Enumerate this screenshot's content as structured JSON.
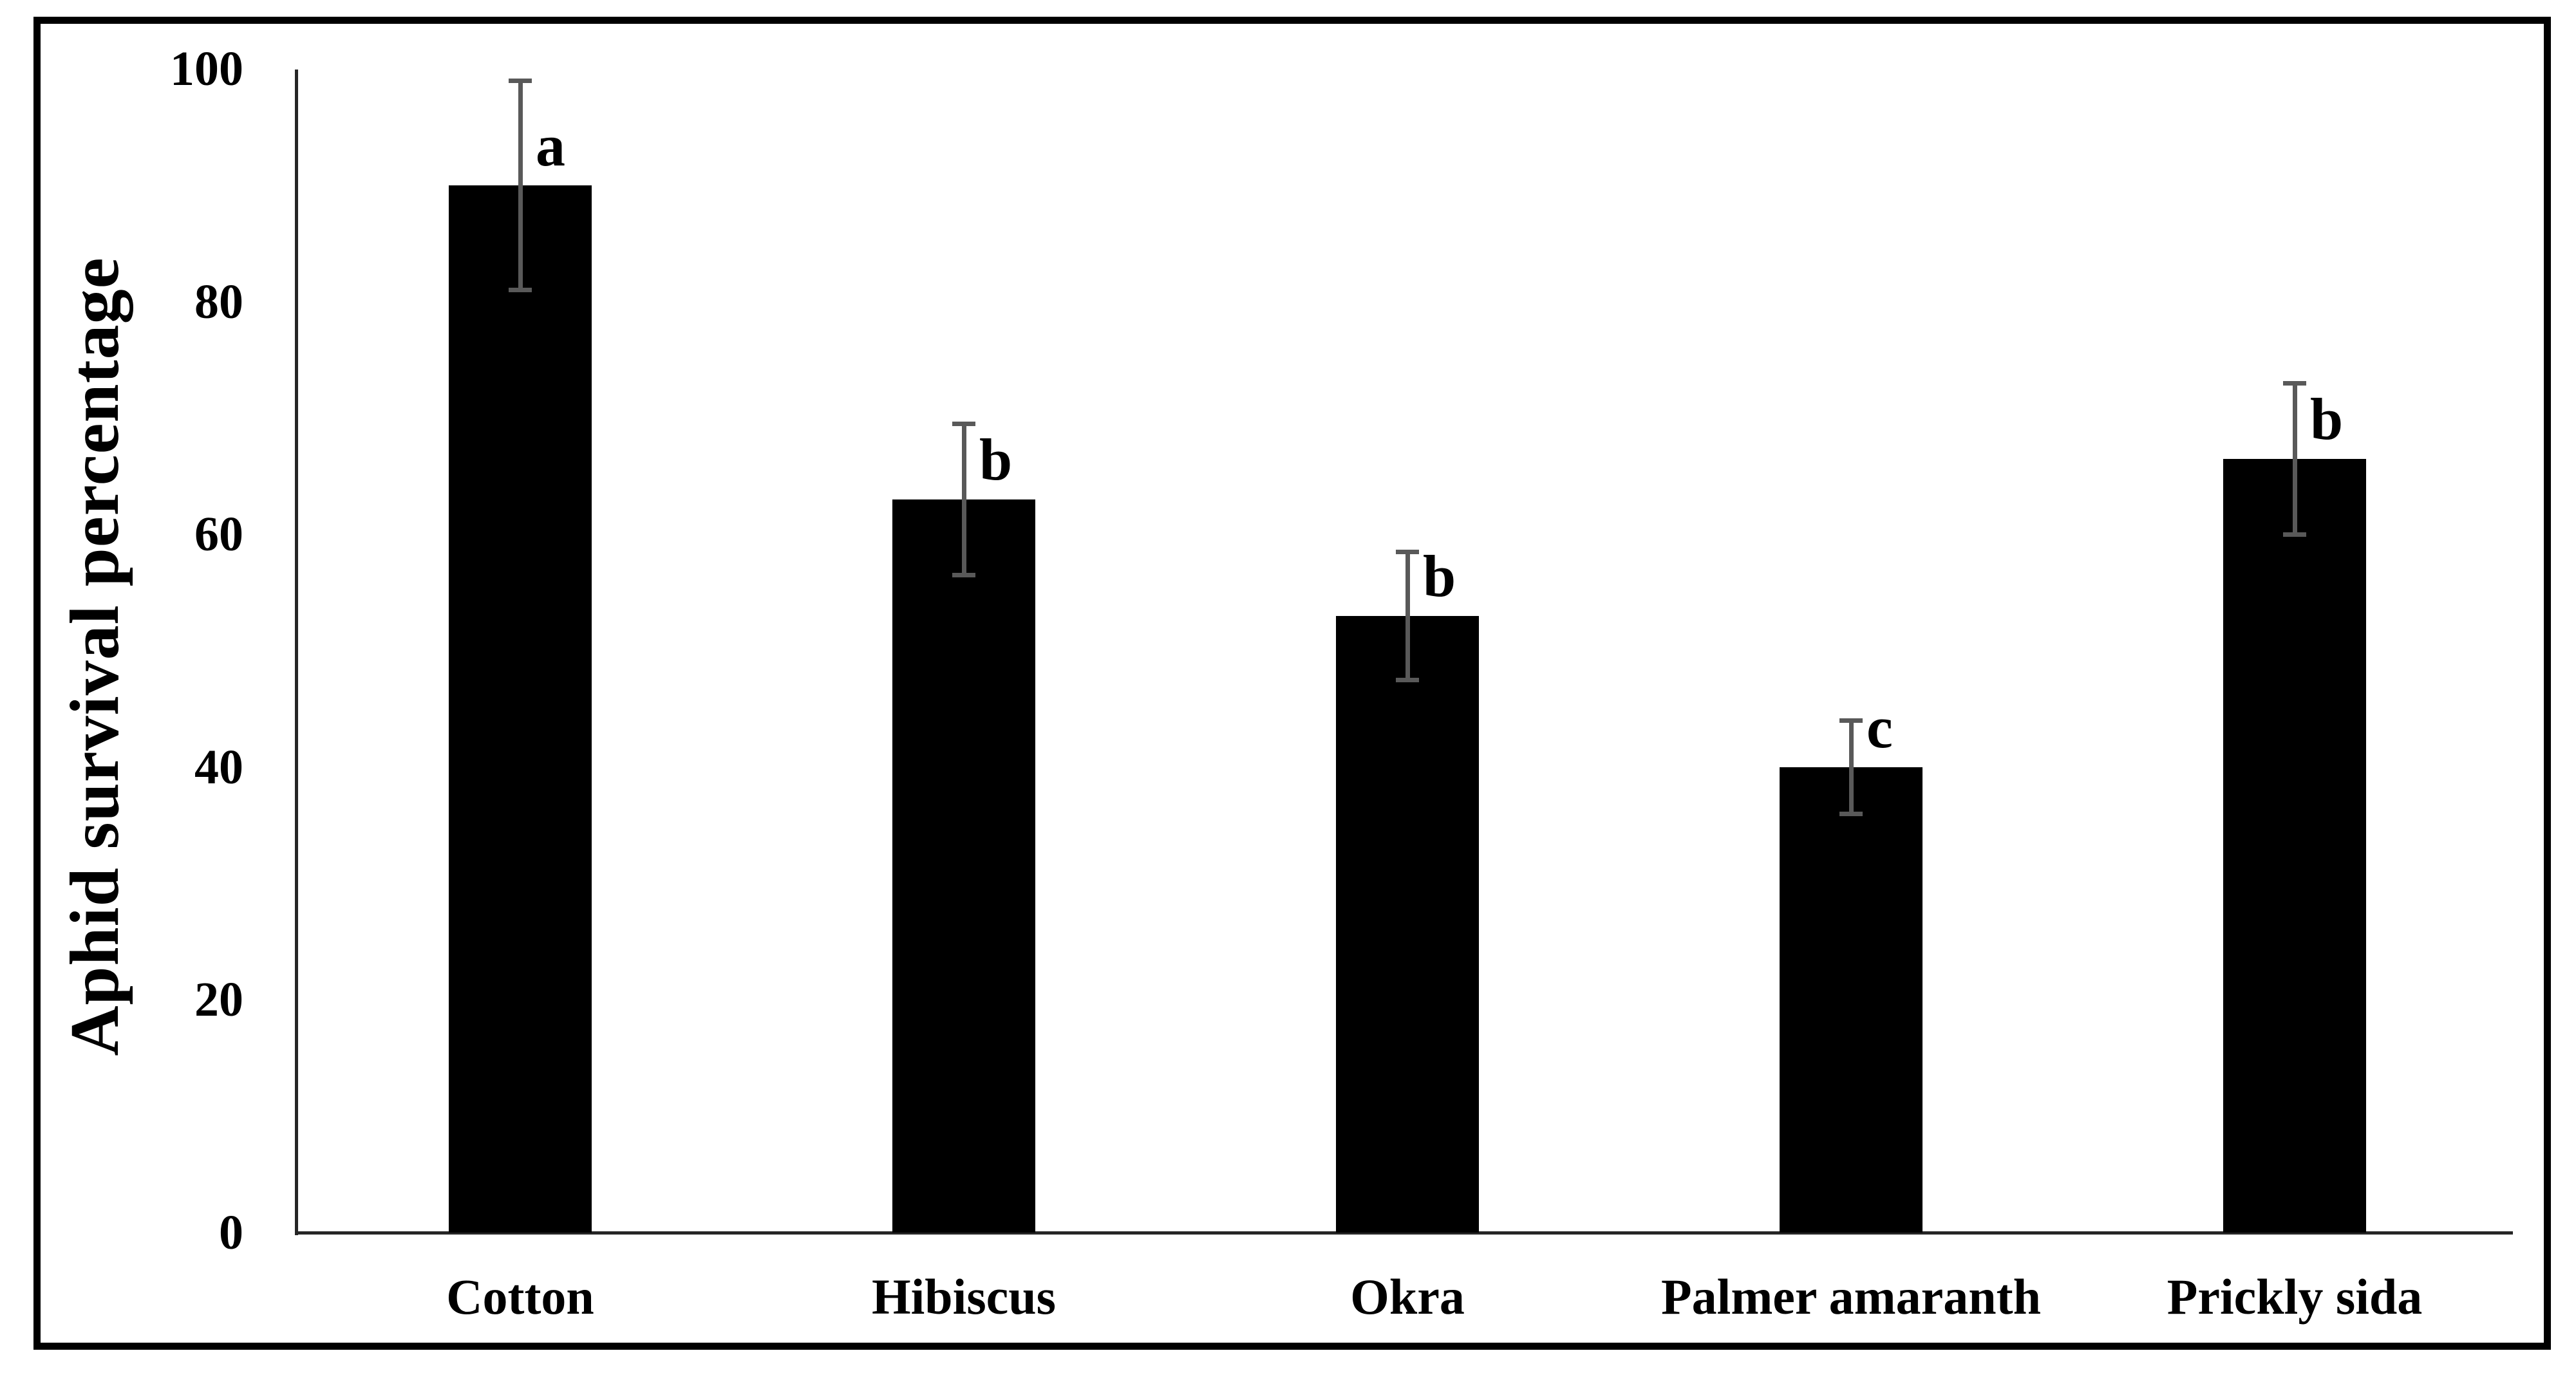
{
  "chart_data": {
    "type": "bar",
    "title": "",
    "ylabel": "Aphid survival percentage",
    "xlabel": "",
    "categories": [
      "Cotton",
      "Hibiscus",
      "Okra",
      "Palmer amaranth",
      "Prickly sida"
    ],
    "values": [
      90,
      63,
      53,
      40,
      66.5
    ],
    "errors": [
      9,
      6.5,
      5.5,
      4,
      6.5
    ],
    "significance_letters": [
      "a",
      "b",
      "b",
      "c",
      "b"
    ],
    "yticks": [
      0,
      20,
      40,
      60,
      80,
      100
    ],
    "ytick_labels": [
      "0",
      "20",
      "40",
      "60",
      "80",
      "100"
    ],
    "ylim": [
      0,
      100
    ],
    "grid": false,
    "legend": false,
    "bar_color": "#000000",
    "error_bar_color": "#595959",
    "axis_color": "#262626",
    "text_color": "#000000",
    "frame_border_color": "#000000"
  }
}
